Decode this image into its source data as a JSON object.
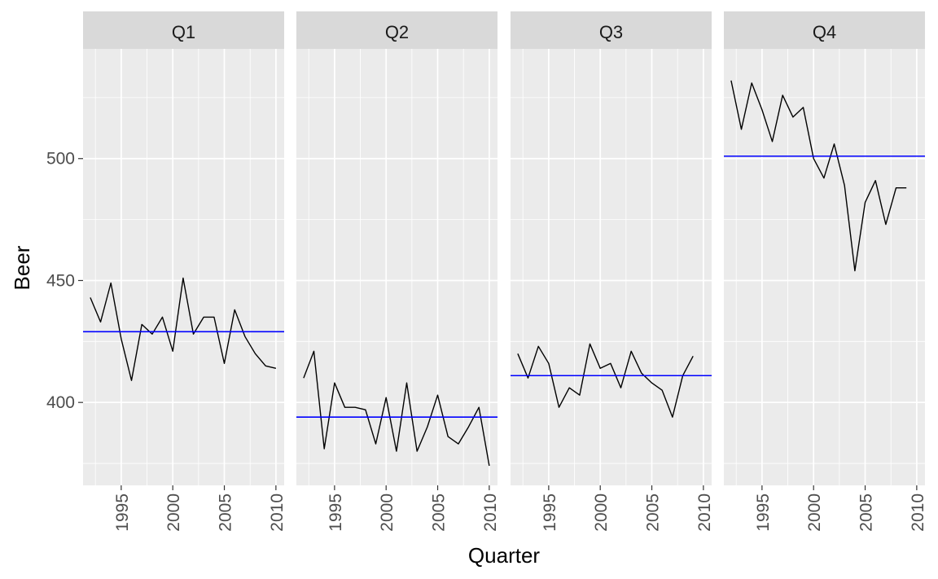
{
  "chart_data": {
    "type": "line",
    "xlabel": "Quarter",
    "ylabel": "Beer",
    "ylim": [
      366,
      545
    ],
    "yticks": [
      400,
      450,
      500
    ],
    "xlim": [
      1991.3,
      2010.8
    ],
    "xticks": [
      1995,
      2000,
      2005,
      2010
    ],
    "colors": {
      "line": "#000000",
      "mean_line": "#0000ff",
      "panel_bg": "#ebebeb",
      "strip_bg": "#d9d9d9",
      "grid": "#ffffff"
    },
    "facets": [
      {
        "label": "Q1",
        "mean": 429,
        "x": [
          1992,
          1993,
          1994,
          1995,
          1996,
          1997,
          1998,
          1999,
          2000,
          2001,
          2002,
          2003,
          2004,
          2005,
          2006,
          2007,
          2008,
          2009,
          2010
        ],
        "y": [
          443,
          433,
          449,
          426,
          409,
          432,
          428,
          435,
          421,
          451,
          428,
          435,
          435,
          416,
          438,
          427,
          420,
          415,
          414
        ]
      },
      {
        "label": "Q2",
        "mean": 394,
        "x": [
          1992,
          1993,
          1994,
          1995,
          1996,
          1997,
          1998,
          1999,
          2000,
          2001,
          2002,
          2003,
          2004,
          2005,
          2006,
          2007,
          2008,
          2009,
          2010
        ],
        "y": [
          410,
          421,
          381,
          408,
          398,
          398,
          397,
          383,
          402,
          380,
          408,
          380,
          390,
          403,
          386,
          383,
          390,
          398,
          374
        ]
      },
      {
        "label": "Q3",
        "mean": 411,
        "x": [
          1992,
          1993,
          1994,
          1995,
          1996,
          1997,
          1998,
          1999,
          2000,
          2001,
          2002,
          2003,
          2004,
          2005,
          2006,
          2007,
          2008,
          2009
        ],
        "y": [
          420,
          410,
          423,
          416,
          398,
          406,
          403,
          424,
          414,
          416,
          406,
          421,
          412,
          408,
          405,
          394,
          411,
          419
        ]
      },
      {
        "label": "Q4",
        "mean": 501,
        "x": [
          1992,
          1993,
          1994,
          1995,
          1996,
          1997,
          1998,
          1999,
          2000,
          2001,
          2002,
          2003,
          2004,
          2005,
          2006,
          2007,
          2008,
          2009
        ],
        "y": [
          532,
          512,
          531,
          520,
          507,
          526,
          517,
          521,
          500,
          492,
          506,
          489,
          454,
          482,
          491,
          473,
          488,
          488
        ]
      }
    ]
  }
}
